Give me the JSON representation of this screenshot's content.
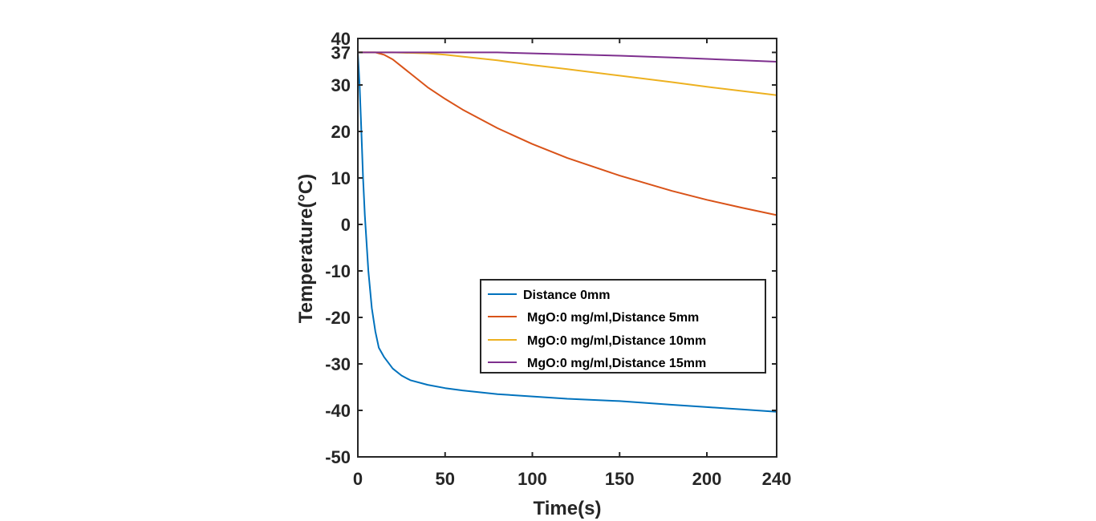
{
  "chart_data": {
    "type": "line",
    "xlabel": "Time(s)",
    "ylabel": "Temperature(°C)",
    "xlim": [
      0,
      240
    ],
    "ylim": [
      -50,
      40
    ],
    "xticks": [
      0,
      50,
      100,
      150,
      200,
      240
    ],
    "xtick_labels": [
      "0",
      "50",
      "100",
      "150",
      "200",
      "240"
    ],
    "yticks": [
      -50,
      -40,
      -30,
      -20,
      -10,
      0,
      10,
      20,
      30,
      37,
      40
    ],
    "ytick_labels": [
      "-50",
      "-40",
      "-30",
      "-20",
      "-10",
      "0",
      "10",
      "20",
      "30",
      "37",
      "40"
    ],
    "grid": false,
    "legend_position": "center-right",
    "series": [
      {
        "name": "Distance 0mm",
        "color": "#0072BD",
        "x": [
          0,
          1,
          2,
          3,
          4,
          6,
          8,
          10,
          12,
          15,
          20,
          25,
          30,
          40,
          50,
          60,
          80,
          100,
          120,
          150,
          180,
          200,
          220,
          240
        ],
        "y": [
          37,
          30,
          20,
          10,
          2,
          -10,
          -18,
          -23,
          -26.5,
          -28.5,
          -31,
          -32.5,
          -33.5,
          -34.5,
          -35.2,
          -35.7,
          -36.5,
          -37,
          -37.5,
          -38,
          -38.8,
          -39.3,
          -39.8,
          -40.3
        ]
      },
      {
        "name": "MgO:0 mg/ml,Distance 5mm",
        "color": "#D95319",
        "x": [
          0,
          10,
          15,
          20,
          25,
          30,
          40,
          50,
          60,
          80,
          100,
          120,
          150,
          180,
          200,
          220,
          240
        ],
        "y": [
          37,
          37,
          36.5,
          35.5,
          34,
          32.5,
          29.5,
          27,
          24.7,
          20.7,
          17.3,
          14.3,
          10.5,
          7.2,
          5.3,
          3.6,
          2
        ]
      },
      {
        "name": "MgO:0 mg/ml,Distance 10mm",
        "color": "#EDB120",
        "x": [
          0,
          20,
          40,
          50,
          60,
          80,
          100,
          120,
          150,
          180,
          200,
          220,
          240
        ],
        "y": [
          37,
          37,
          36.8,
          36.5,
          36.1,
          35.3,
          34.3,
          33.4,
          32,
          30.6,
          29.6,
          28.7,
          27.8
        ]
      },
      {
        "name": "MgO:0 mg/ml,Distance 15mm",
        "color": "#7E2F8E",
        "x": [
          0,
          40,
          80,
          100,
          120,
          150,
          180,
          200,
          220,
          240
        ],
        "y": [
          37,
          37,
          37,
          36.8,
          36.6,
          36.3,
          35.9,
          35.6,
          35.3,
          35
        ]
      }
    ]
  }
}
